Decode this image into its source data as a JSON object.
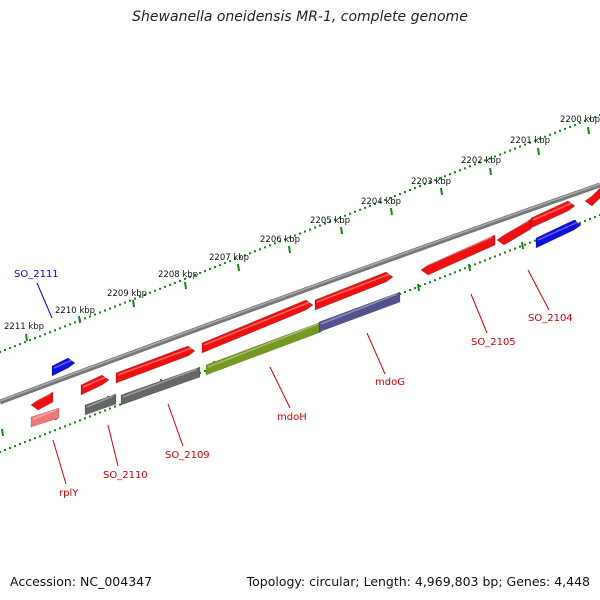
{
  "title": "Shewanella oneidensis MR-1, complete genome",
  "footer": {
    "accession": "Accession: NC_004347",
    "topology": "Topology: circular; Length: 4,969,803 bp; Genes: 4,448"
  },
  "colors": {
    "backbone": "#888888",
    "ruler": "#118811",
    "gene_red": "#ee1111",
    "gene_gray": "#666666",
    "gene_blue": "#1111dd",
    "gene_green": "#779922",
    "gene_purple": "#55518f",
    "gene_pink": "#ee7777",
    "label_red": "#cc0000",
    "label_blue": "#0000cc"
  },
  "ruler_ticks": [
    "2200 kbp",
    "2201 kbp",
    "2202 kbp",
    "2203 kbp",
    "2204 kbp",
    "2205 kbp",
    "2206 kbp",
    "2207 kbp",
    "2208 kbp",
    "2209 kbp",
    "2210 kbp",
    "2211 kbp"
  ],
  "gene_labels": [
    {
      "id": "so2111",
      "text": "SO_2111",
      "color": "blue"
    },
    {
      "id": "so2110",
      "text": "SO_2110",
      "color": "red"
    },
    {
      "id": "so2109",
      "text": "SO_2109",
      "color": "red"
    },
    {
      "id": "rply",
      "text": "rplY",
      "color": "red"
    },
    {
      "id": "mdoh",
      "text": "mdoH",
      "color": "red"
    },
    {
      "id": "mdog",
      "text": "mdoG",
      "color": "red"
    },
    {
      "id": "so2105",
      "text": "SO_2105",
      "color": "red"
    },
    {
      "id": "so2104",
      "text": "SO_2104",
      "color": "red"
    }
  ],
  "genes": [
    {
      "name": "gene-rplY",
      "track": "outer",
      "color": "red",
      "dir": "left"
    },
    {
      "name": "gene-rplY-rna",
      "track": "inner",
      "color": "pink",
      "dir": "none"
    },
    {
      "name": "gene-SO_2111",
      "track": "outer",
      "color": "blue",
      "dir": "right"
    },
    {
      "name": "gene-SO_2110",
      "track": "outer",
      "color": "red",
      "dir": "right"
    },
    {
      "name": "gene-SO_2110-rna",
      "track": "inner",
      "color": "gray",
      "dir": "none"
    },
    {
      "name": "gene-SO_2109",
      "track": "outer",
      "color": "red",
      "dir": "right"
    },
    {
      "name": "gene-SO_2109-rna",
      "track": "inner",
      "color": "gray",
      "dir": "none"
    },
    {
      "name": "gene-mdoH",
      "track": "outer",
      "color": "red",
      "dir": "right"
    },
    {
      "name": "gene-mdoH-rna",
      "track": "inner",
      "color": "green",
      "dir": "none"
    },
    {
      "name": "gene-mdoG",
      "track": "outer",
      "color": "red",
      "dir": "right"
    },
    {
      "name": "gene-mdoG-rna",
      "track": "inner",
      "color": "purple",
      "dir": "none"
    },
    {
      "name": "gene-SO_2105",
      "track": "outer",
      "color": "red",
      "dir": "left"
    },
    {
      "name": "gene-SO_2104",
      "track": "outer",
      "color": "red",
      "dir": "left"
    },
    {
      "name": "gene-SO_2103",
      "track": "outer",
      "color": "red",
      "dir": "right"
    },
    {
      "name": "gene-SO_2104-rna",
      "track": "inner",
      "color": "blue",
      "dir": "right"
    },
    {
      "name": "gene-SO_2102",
      "track": "outer",
      "color": "red",
      "dir": "left"
    }
  ]
}
